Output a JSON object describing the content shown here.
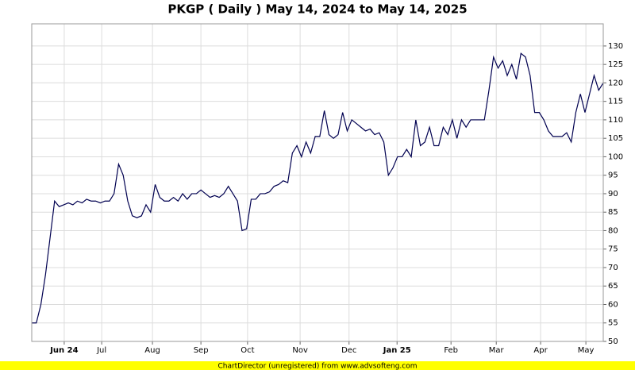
{
  "chart_data": {
    "type": "line",
    "title": "PKGP ( Daily ) May 14, 2024 to May 14, 2025",
    "footer": "ChartDirector (unregistered) from www.advsofteng.com",
    "series": [
      {
        "color": "#000050",
        "values": [
          55,
          55,
          60,
          68,
          78,
          88,
          86.5,
          87,
          87.5,
          87,
          88,
          87.5,
          88.5,
          88,
          88,
          87.5,
          88,
          88,
          90,
          98,
          95,
          88,
          84,
          83.5,
          84,
          87,
          85,
          92.5,
          89,
          88,
          88,
          89,
          88,
          90,
          88.5,
          90,
          90,
          91,
          90,
          89,
          89.5,
          89,
          90,
          92,
          90,
          88,
          80,
          80.5,
          88.5,
          88.5,
          90,
          90,
          90.5,
          92,
          92.5,
          93.5,
          93,
          101,
          103,
          100,
          104,
          101,
          105.5,
          105.5,
          112.5,
          106,
          105,
          106,
          112,
          107,
          110,
          109,
          108,
          107,
          107.5,
          106,
          106.5,
          104,
          95,
          97,
          100,
          100,
          102,
          100,
          110,
          103,
          104,
          108,
          103,
          103,
          108,
          106,
          110,
          105,
          110,
          108,
          110,
          110,
          110,
          110,
          118,
          127,
          124,
          126,
          122,
          125,
          121,
          128,
          127,
          122,
          112,
          112,
          110,
          107,
          105.5,
          105.5,
          105.5,
          106.5,
          104,
          112,
          117,
          112,
          117,
          122,
          118,
          120
        ]
      }
    ],
    "xlim": [
      0,
      125
    ],
    "xticks": [
      {
        "value": 7.1,
        "label": "Jun 24"
      },
      {
        "value": 15.3,
        "label": "Jul"
      },
      {
        "value": 26.4,
        "label": "Aug"
      },
      {
        "value": 37,
        "label": "Sep"
      },
      {
        "value": 47.2,
        "label": "Oct"
      },
      {
        "value": 58.7,
        "label": "Nov"
      },
      {
        "value": 69.4,
        "label": "Dec"
      },
      {
        "value": 79.9,
        "label": "Jan 25"
      },
      {
        "value": 91.7,
        "label": "Feb"
      },
      {
        "value": 101.6,
        "label": "Mar"
      },
      {
        "value": 111.3,
        "label": "Apr"
      },
      {
        "value": 121.2,
        "label": "May"
      }
    ],
    "ylim": [
      50,
      136
    ],
    "yticks": [
      50,
      55,
      60,
      65,
      70,
      75,
      80,
      85,
      90,
      95,
      100,
      105,
      110,
      115,
      120,
      125,
      130
    ],
    "grid": true
  }
}
